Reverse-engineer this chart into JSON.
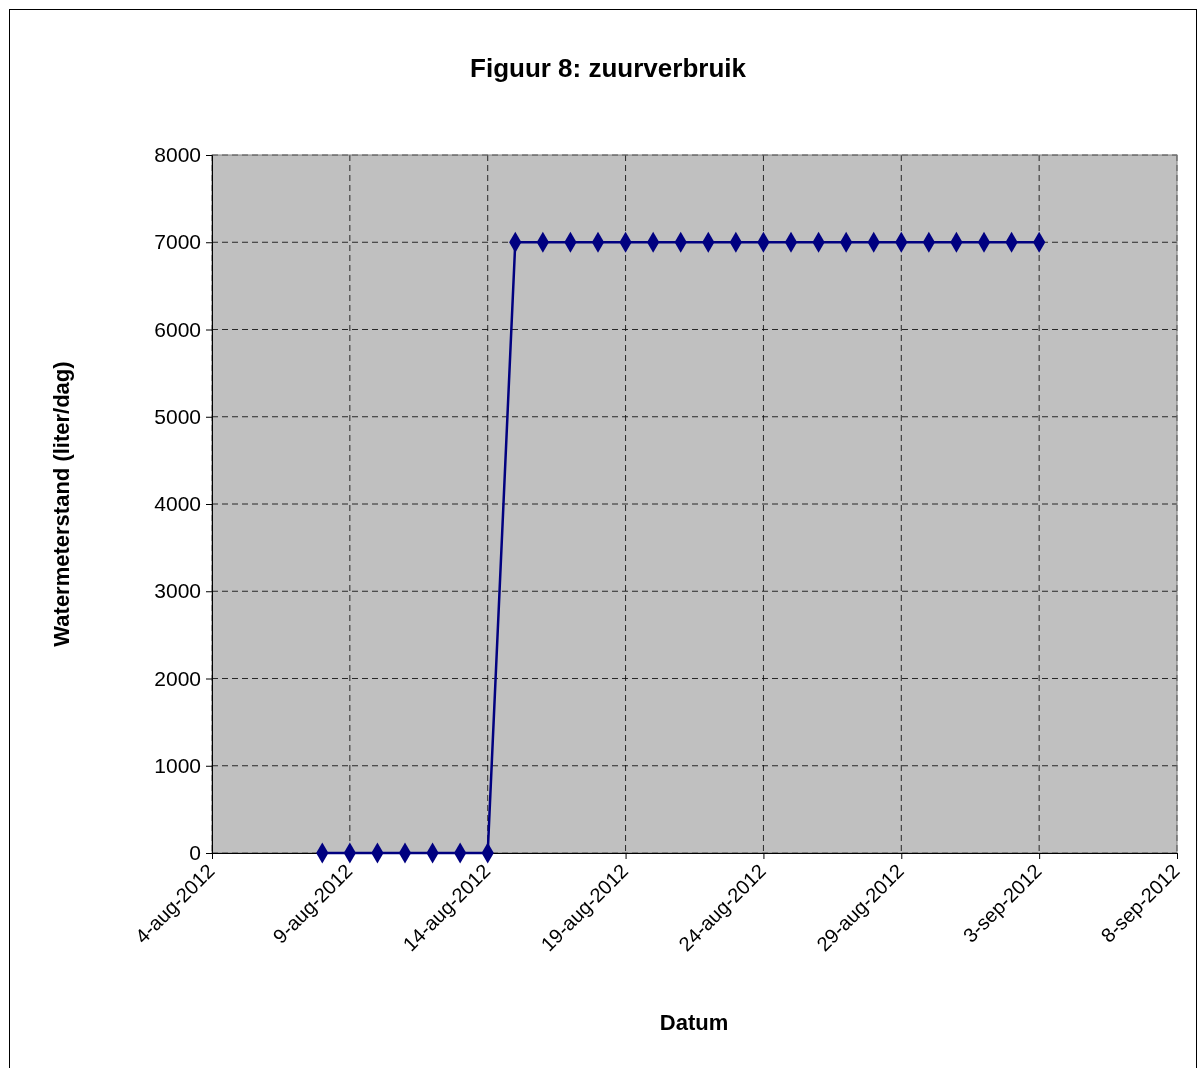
{
  "chart_data": {
    "type": "line",
    "title": "Figuur 8: zuurverbruik",
    "xlabel": "Datum",
    "ylabel": "Watermeterstand (liter/dag)",
    "x": [
      "2012-08-08",
      "2012-08-09",
      "2012-08-10",
      "2012-08-11",
      "2012-08-12",
      "2012-08-13",
      "2012-08-14",
      "2012-08-15",
      "2012-08-16",
      "2012-08-17",
      "2012-08-18",
      "2012-08-19",
      "2012-08-20",
      "2012-08-21",
      "2012-08-22",
      "2012-08-23",
      "2012-08-24",
      "2012-08-25",
      "2012-08-26",
      "2012-08-27",
      "2012-08-28",
      "2012-08-29",
      "2012-08-30",
      "2012-08-31",
      "2012-09-01",
      "2012-09-02",
      "2012-09-03"
    ],
    "series": [
      {
        "color": "#000080",
        "values": [
          0,
          0,
          0,
          0,
          0,
          0,
          0,
          7000,
          7000,
          7000,
          7000,
          7000,
          7000,
          7000,
          7000,
          7000,
          7000,
          7000,
          7000,
          7000,
          7000,
          7000,
          7000,
          7000,
          7000,
          7000,
          7000
        ]
      }
    ],
    "xlim": [
      "2012-08-04",
      "2012-09-08"
    ],
    "xticks": [
      {
        "value": "2012-08-04",
        "label": "4-aug-2012"
      },
      {
        "value": "2012-08-09",
        "label": "9-aug-2012"
      },
      {
        "value": "2012-08-14",
        "label": "14-aug-2012"
      },
      {
        "value": "2012-08-19",
        "label": "19-aug-2012"
      },
      {
        "value": "2012-08-24",
        "label": "24-aug-2012"
      },
      {
        "value": "2012-08-29",
        "label": "29-aug-2012"
      },
      {
        "value": "2012-09-03",
        "label": "3-sep-2012"
      },
      {
        "value": "2012-09-08",
        "label": "8-sep-2012"
      }
    ],
    "ylim": [
      0,
      8000
    ],
    "yticks": [
      0,
      1000,
      2000,
      3000,
      4000,
      5000,
      6000,
      7000,
      8000
    ],
    "grid": true,
    "marker": "diamond",
    "line_style": "solid"
  }
}
